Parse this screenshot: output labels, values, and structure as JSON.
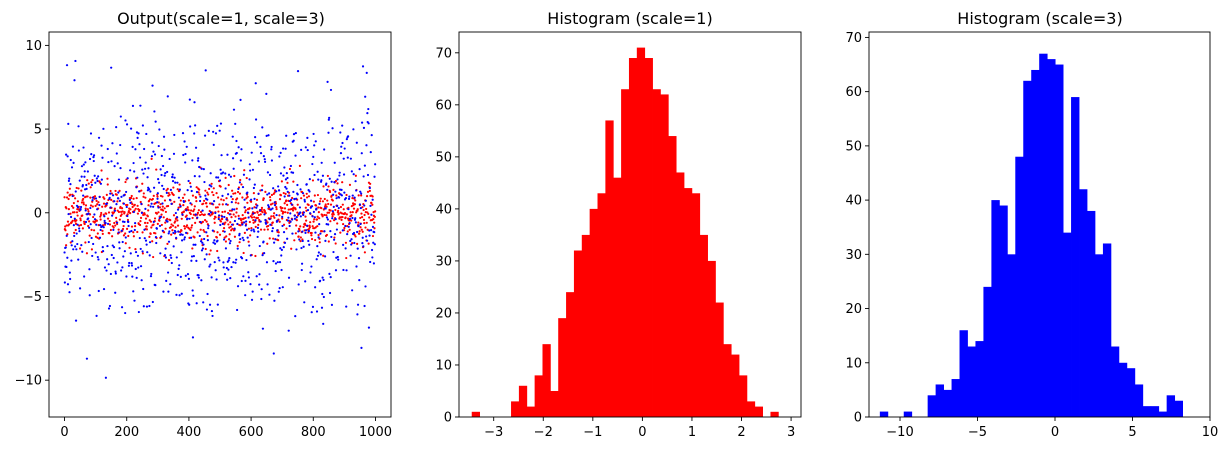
{
  "chart_data": [
    {
      "type": "scatter",
      "title": "Output(scale=1, scale=3)",
      "xlabel": "",
      "ylabel": "",
      "xlim": [
        -50,
        1050
      ],
      "ylim": [
        -12.2,
        10.8
      ],
      "xticks": [
        0,
        200,
        400,
        600,
        800,
        1000
      ],
      "yticks": [
        -10,
        -5,
        0,
        5,
        10
      ],
      "grid": false,
      "series": [
        {
          "color": "#ff0000",
          "n_points": 1000,
          "distribution": "normal",
          "mean": 0,
          "std": 1,
          "points_estimated": true
        },
        {
          "color": "#0000ff",
          "n_points": 1000,
          "distribution": "normal",
          "mean": 0,
          "std": 3,
          "points_estimated": true
        }
      ]
    },
    {
      "type": "bar",
      "title": "Histogram (scale=1)",
      "xlabel": "",
      "ylabel": "",
      "xlim": [
        -3.7,
        3.2
      ],
      "ylim": [
        0,
        74
      ],
      "xticks": [
        -3,
        -2,
        -1,
        0,
        1,
        2,
        3
      ],
      "yticks": [
        0,
        10,
        20,
        30,
        40,
        50,
        60,
        70
      ],
      "grid": false,
      "color": "#ff0000",
      "bin_start": -3.443,
      "bin_width": 0.1586,
      "values": [
        1,
        0,
        0,
        0,
        0,
        3,
        6,
        2,
        8,
        14,
        5,
        19,
        24,
        32,
        35,
        40,
        43,
        57,
        46,
        63,
        69,
        71,
        69,
        63,
        62,
        54,
        47,
        44,
        43,
        35,
        30,
        22,
        14,
        12,
        8,
        3,
        2,
        0,
        1
      ]
    },
    {
      "type": "bar",
      "title": "Histogram (scale=3)",
      "xlabel": "",
      "ylabel": "",
      "xlim": [
        -12.0,
        10.0
      ],
      "ylim": [
        0,
        71
      ],
      "xticks": [
        -10,
        -5,
        0,
        5,
        10
      ],
      "yticks": [
        0,
        10,
        20,
        30,
        40,
        50,
        60,
        70
      ],
      "grid": false,
      "color": "#0000ff",
      "bin_start": -11.3,
      "bin_width": 0.514,
      "values": [
        1,
        0,
        0,
        1,
        0,
        0,
        4,
        6,
        5,
        7,
        16,
        13,
        14,
        24,
        40,
        39,
        30,
        48,
        62,
        64,
        67,
        66,
        65,
        34,
        59,
        42,
        38,
        30,
        32,
        13,
        10,
        9,
        6,
        2,
        2,
        1,
        4,
        3
      ]
    }
  ]
}
